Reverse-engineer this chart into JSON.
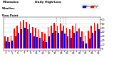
{
  "title": "Daily High/Low",
  "left_label_line1": "Milwaukee",
  "left_label_line2": "Weather",
  "left_label_line3": "Dew Point",
  "background_color": "#ffffff",
  "plot_bg_color": "#ffffff",
  "high_color": "#ff0000",
  "low_color": "#0000ff",
  "dashed_vline_positions": [
    17,
    18,
    19,
    20
  ],
  "ylim": [
    -5,
    75
  ],
  "yticks": [
    0,
    10,
    20,
    30,
    40,
    50,
    60,
    70
  ],
  "n_days": 31,
  "x_tick_labels": [
    "1",
    "",
    "3",
    "",
    "5",
    "",
    "7",
    "",
    "9",
    "",
    "11",
    "",
    "13",
    "",
    "15",
    "",
    "17",
    "",
    "19",
    "",
    "21",
    "",
    "23",
    "",
    "25",
    "",
    "27",
    "",
    "29",
    "",
    "31"
  ],
  "highs": [
    30,
    28,
    32,
    48,
    55,
    65,
    68,
    63,
    58,
    52,
    50,
    46,
    40,
    36,
    52,
    56,
    62,
    55,
    60,
    55,
    50,
    46,
    56,
    60,
    48,
    42,
    32,
    44,
    56,
    62,
    60
  ],
  "lows": [
    18,
    16,
    20,
    30,
    38,
    46,
    50,
    46,
    38,
    30,
    28,
    26,
    20,
    16,
    30,
    38,
    44,
    38,
    44,
    36,
    30,
    26,
    38,
    42,
    28,
    18,
    12,
    24,
    38,
    44,
    46
  ]
}
